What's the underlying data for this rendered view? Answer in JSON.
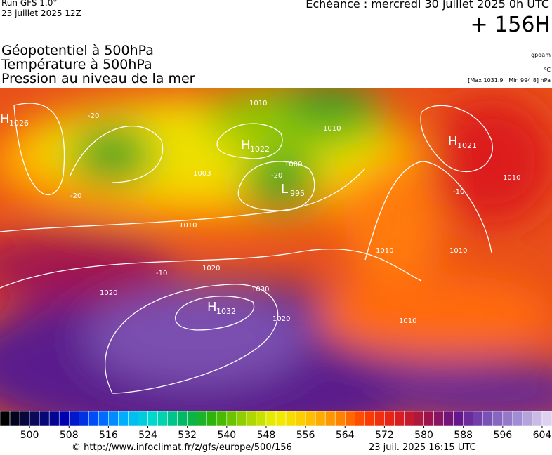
{
  "header": {
    "run": "Run GFS 1.0°",
    "run_date": "23 juillet 2025 12Z",
    "valid": "Echéance : mercredi 30 juillet 2025 0h UTC",
    "lead": "+ 156H",
    "fields": [
      "Géopotentiel à 500hPa",
      "Température à 500hPa",
      "Pression au niveau de la mer"
    ],
    "units": [
      "gpdam",
      "°C"
    ],
    "extremes": "[Max 1031.9 | Min 994.8] hPa"
  },
  "map": {
    "centers": [
      {
        "letter": "H",
        "value": "1026"
      },
      {
        "letter": "H",
        "value": "1022"
      },
      {
        "letter": "H",
        "value": "1021"
      },
      {
        "letter": "H",
        "value": "1032"
      },
      {
        "letter": "L",
        "value": "995"
      }
    ],
    "contour_labels": [
      "1010",
      "1010",
      "1000",
      "1003",
      "1010",
      "1020",
      "1020",
      "1030",
      "1020",
      "1010",
      "1010",
      "1010",
      "1010",
      "-20",
      "-20",
      "-20",
      "-10",
      "-10"
    ]
  },
  "colorbar": {
    "lim": [
      494,
      606
    ],
    "step": 2,
    "ticks": [
      500,
      508,
      516,
      524,
      532,
      540,
      548,
      556,
      564,
      572,
      580,
      588,
      596,
      604
    ],
    "colors": [
      "#000000",
      "#0a0a5a",
      "#0000b4",
      "#0050ff",
      "#00b4ff",
      "#00dcc8",
      "#00b45a",
      "#32b400",
      "#a0d200",
      "#f0f000",
      "#ffc800",
      "#ff8c00",
      "#ff3c00",
      "#dc1e1e",
      "#a01446",
      "#64148c",
      "#7850b4",
      "#a08cd2",
      "#dcd2f0"
    ]
  },
  "footer": {
    "source": "© http://www.infoclimat.fr/z/gfs/europe/500/156",
    "generated": "23 juil. 2025 16:15 UTC"
  }
}
